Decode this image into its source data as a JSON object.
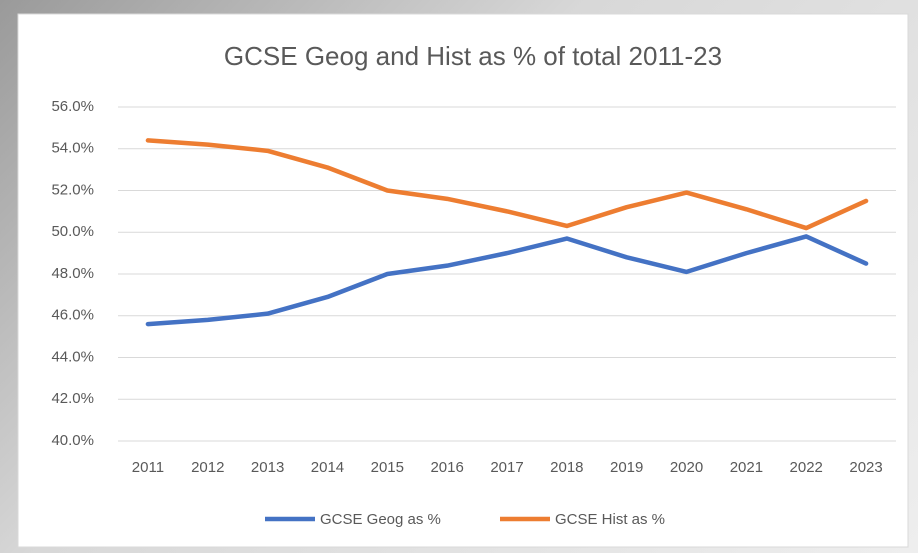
{
  "chart_data": {
    "type": "line",
    "title": "GCSE Geog and Hist as % of total 2011-23",
    "categories": [
      "2011",
      "2012",
      "2013",
      "2014",
      "2015",
      "2016",
      "2017",
      "2018",
      "2019",
      "2020",
      "2021",
      "2022",
      "2023"
    ],
    "series": [
      {
        "name": "GCSE Geog as %",
        "color": "#4472c4",
        "values": [
          45.6,
          45.8,
          46.1,
          46.9,
          48.0,
          48.4,
          49.0,
          49.7,
          48.8,
          48.1,
          49.0,
          49.8,
          48.5
        ]
      },
      {
        "name": "GCSE Hist as %",
        "color": "#ed7d31",
        "values": [
          54.4,
          54.2,
          53.9,
          53.1,
          52.0,
          51.6,
          51.0,
          50.3,
          51.2,
          51.9,
          51.1,
          50.2,
          51.5
        ]
      }
    ],
    "ylim": [
      40,
      56
    ],
    "yticks": [
      {
        "value": 40,
        "label": "40.0%"
      },
      {
        "value": 42,
        "label": "42.0%"
      },
      {
        "value": 44,
        "label": "44.0%"
      },
      {
        "value": 46,
        "label": "46.0%"
      },
      {
        "value": 48,
        "label": "48.0%"
      },
      {
        "value": 50,
        "label": "50.0%"
      },
      {
        "value": 52,
        "label": "52.0%"
      },
      {
        "value": 54,
        "label": "54.0%"
      },
      {
        "value": 56,
        "label": "56.0%"
      }
    ],
    "grid": true,
    "legend": "bottom"
  }
}
